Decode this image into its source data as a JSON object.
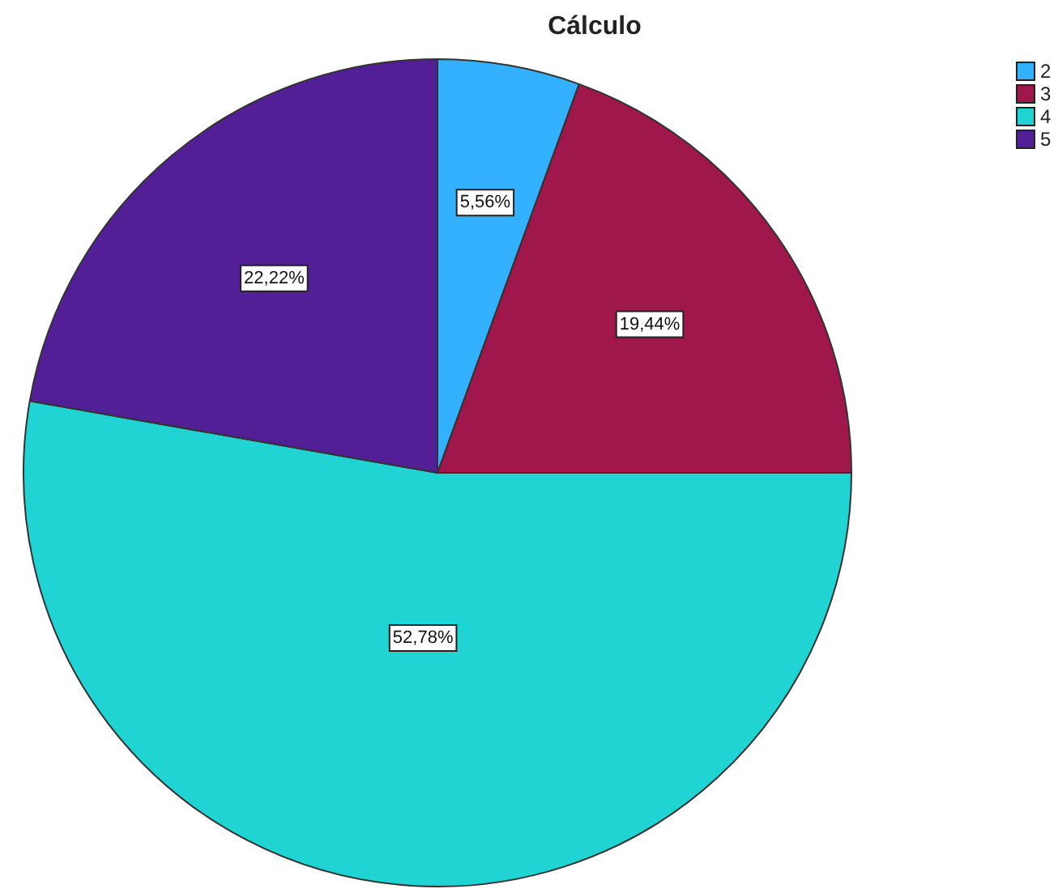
{
  "chart_data": {
    "type": "pie",
    "title": "Cálculo",
    "legend": "top right",
    "categories": [
      "2",
      "3",
      "4",
      "5"
    ],
    "values": [
      5.56,
      19.44,
      52.78,
      22.22
    ],
    "colors": [
      "#33b1ff",
      "#a0174c",
      "#20d4d4",
      "#531f96"
    ],
    "value_labels": [
      "5,56%",
      "19,44%",
      "52,78%",
      "22,22%"
    ]
  }
}
